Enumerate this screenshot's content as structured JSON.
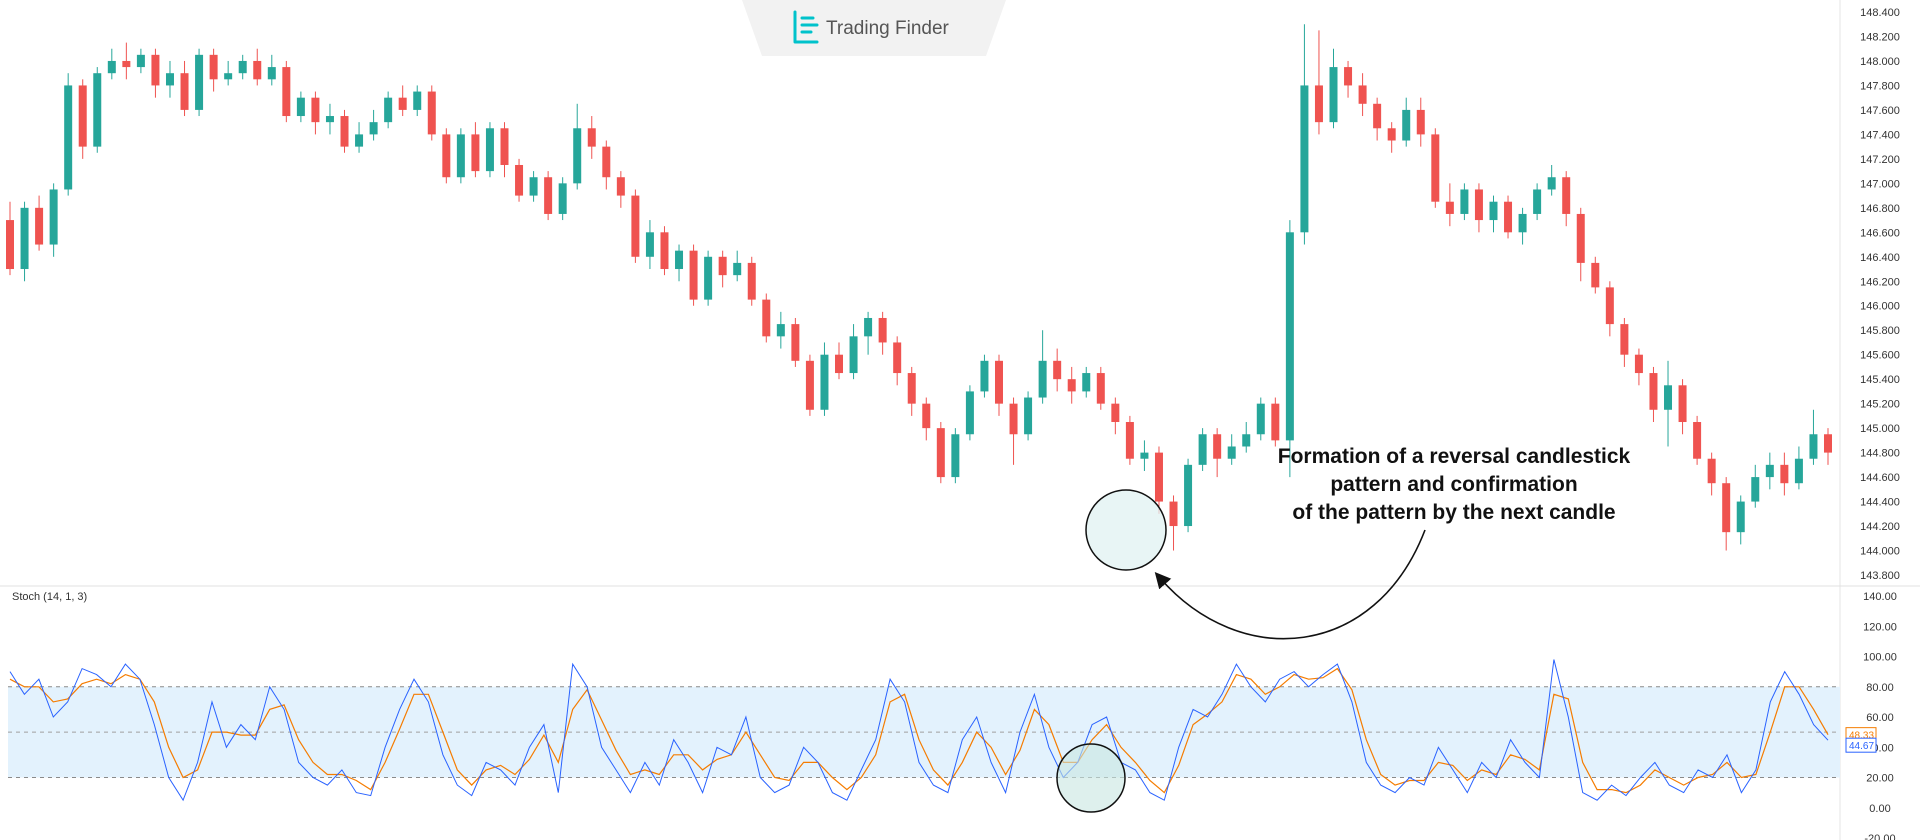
{
  "brand": {
    "name": "Trading Finder",
    "icon": "trading-finder-logo-icon"
  },
  "annotation": {
    "lines": [
      "Formation of a reversal candlestick",
      "pattern and confirmation",
      "of the pattern by the next candle"
    ]
  },
  "colors": {
    "up": "#26a69a",
    "down": "#ef5350",
    "k_line": "#2962ff",
    "d_line": "#f57c00",
    "band_fill": "#e3f2fd",
    "highlight": "#e0f2f1"
  },
  "chart_data": [
    {
      "type": "candlestick",
      "title": "",
      "ylabel": "",
      "y_ticks": [
        "148.400",
        "148.200",
        "148.000",
        "147.800",
        "147.600",
        "147.400",
        "147.200",
        "147.000",
        "146.800",
        "146.600",
        "146.400",
        "146.200",
        "146.000",
        "145.800",
        "145.600",
        "145.400",
        "145.200",
        "145.000",
        "144.800",
        "144.600",
        "144.400",
        "144.200",
        "144.000",
        "143.800"
      ],
      "ylim": [
        143.8,
        148.4
      ],
      "grid": false,
      "candles": [
        [
          146.7,
          146.3,
          146.85,
          146.25
        ],
        [
          146.3,
          146.8,
          146.85,
          146.2
        ],
        [
          146.8,
          146.5,
          146.9,
          146.45
        ],
        [
          146.5,
          146.95,
          147.0,
          146.4
        ],
        [
          146.95,
          147.8,
          147.9,
          146.9
        ],
        [
          147.8,
          147.3,
          147.85,
          147.2
        ],
        [
          147.3,
          147.9,
          147.95,
          147.25
        ],
        [
          147.9,
          148.0,
          148.1,
          147.85
        ],
        [
          148.0,
          147.95,
          148.15,
          147.85
        ],
        [
          147.95,
          148.05,
          148.1,
          147.9
        ],
        [
          148.05,
          147.8,
          148.1,
          147.7
        ],
        [
          147.8,
          147.9,
          148.0,
          147.7
        ],
        [
          147.9,
          147.6,
          148.0,
          147.55
        ],
        [
          147.6,
          148.05,
          148.1,
          147.55
        ],
        [
          148.05,
          147.85,
          148.1,
          147.75
        ],
        [
          147.85,
          147.9,
          148.0,
          147.8
        ],
        [
          147.9,
          148.0,
          148.05,
          147.85
        ],
        [
          148.0,
          147.85,
          148.1,
          147.8
        ],
        [
          147.85,
          147.95,
          148.05,
          147.8
        ],
        [
          147.95,
          147.55,
          148.0,
          147.5
        ],
        [
          147.55,
          147.7,
          147.75,
          147.5
        ],
        [
          147.7,
          147.5,
          147.75,
          147.4
        ],
        [
          147.5,
          147.55,
          147.65,
          147.4
        ],
        [
          147.55,
          147.3,
          147.6,
          147.25
        ],
        [
          147.3,
          147.4,
          147.5,
          147.25
        ],
        [
          147.4,
          147.5,
          147.6,
          147.35
        ],
        [
          147.5,
          147.7,
          147.75,
          147.45
        ],
        [
          147.7,
          147.6,
          147.8,
          147.55
        ],
        [
          147.6,
          147.75,
          147.8,
          147.55
        ],
        [
          147.75,
          147.4,
          147.8,
          147.35
        ],
        [
          147.4,
          147.05,
          147.45,
          147.0
        ],
        [
          147.05,
          147.4,
          147.45,
          147.0
        ],
        [
          147.4,
          147.1,
          147.5,
          147.05
        ],
        [
          147.1,
          147.45,
          147.5,
          147.05
        ],
        [
          147.45,
          147.15,
          147.5,
          147.05
        ],
        [
          147.15,
          146.9,
          147.2,
          146.85
        ],
        [
          146.9,
          147.05,
          147.1,
          146.85
        ],
        [
          147.05,
          146.75,
          147.1,
          146.7
        ],
        [
          146.75,
          147.0,
          147.05,
          146.7
        ],
        [
          147.0,
          147.45,
          147.65,
          146.95
        ],
        [
          147.45,
          147.3,
          147.55,
          147.2
        ],
        [
          147.3,
          147.05,
          147.35,
          146.95
        ],
        [
          147.05,
          146.9,
          147.1,
          146.8
        ],
        [
          146.9,
          146.4,
          146.95,
          146.35
        ],
        [
          146.4,
          146.6,
          146.7,
          146.3
        ],
        [
          146.6,
          146.3,
          146.65,
          146.25
        ],
        [
          146.3,
          146.45,
          146.5,
          146.2
        ],
        [
          146.45,
          146.05,
          146.5,
          146.0
        ],
        [
          146.05,
          146.4,
          146.45,
          146.0
        ],
        [
          146.4,
          146.25,
          146.45,
          146.15
        ],
        [
          146.25,
          146.35,
          146.45,
          146.2
        ],
        [
          146.35,
          146.05,
          146.4,
          146.0
        ],
        [
          146.05,
          145.75,
          146.1,
          145.7
        ],
        [
          145.75,
          145.85,
          145.95,
          145.65
        ],
        [
          145.85,
          145.55,
          145.9,
          145.5
        ],
        [
          145.55,
          145.15,
          145.6,
          145.1
        ],
        [
          145.15,
          145.6,
          145.7,
          145.1
        ],
        [
          145.6,
          145.45,
          145.7,
          145.4
        ],
        [
          145.45,
          145.75,
          145.85,
          145.4
        ],
        [
          145.75,
          145.9,
          145.95,
          145.6
        ],
        [
          145.9,
          145.7,
          145.95,
          145.6
        ],
        [
          145.7,
          145.45,
          145.75,
          145.35
        ],
        [
          145.45,
          145.2,
          145.5,
          145.1
        ],
        [
          145.2,
          145.0,
          145.25,
          144.9
        ],
        [
          145.0,
          144.6,
          145.05,
          144.55
        ],
        [
          144.6,
          144.95,
          145.0,
          144.55
        ],
        [
          144.95,
          145.3,
          145.35,
          144.9
        ],
        [
          145.3,
          145.55,
          145.6,
          145.25
        ],
        [
          145.55,
          145.2,
          145.6,
          145.1
        ],
        [
          145.2,
          144.95,
          145.25,
          144.7
        ],
        [
          144.95,
          145.25,
          145.3,
          144.9
        ],
        [
          145.25,
          145.55,
          145.8,
          145.2
        ],
        [
          145.55,
          145.4,
          145.65,
          145.3
        ],
        [
          145.4,
          145.3,
          145.5,
          145.2
        ],
        [
          145.3,
          145.45,
          145.5,
          145.25
        ],
        [
          145.45,
          145.2,
          145.5,
          145.15
        ],
        [
          145.2,
          145.05,
          145.25,
          144.95
        ],
        [
          145.05,
          144.75,
          145.1,
          144.7
        ],
        [
          144.75,
          144.8,
          144.9,
          144.65
        ],
        [
          144.8,
          144.4,
          144.85,
          144.3
        ],
        [
          144.4,
          144.2,
          144.45,
          144.0
        ],
        [
          144.2,
          144.7,
          144.75,
          144.15
        ],
        [
          144.7,
          144.95,
          145.0,
          144.65
        ],
        [
          144.95,
          144.75,
          145.0,
          144.6
        ],
        [
          144.75,
          144.85,
          144.95,
          144.7
        ],
        [
          144.85,
          144.95,
          145.05,
          144.8
        ],
        [
          144.95,
          145.2,
          145.25,
          144.9
        ],
        [
          145.2,
          144.9,
          145.25,
          144.85
        ],
        [
          144.9,
          146.6,
          146.7,
          144.6
        ],
        [
          146.6,
          147.8,
          148.3,
          146.5
        ],
        [
          147.8,
          147.5,
          148.25,
          147.4
        ],
        [
          147.5,
          147.95,
          148.1,
          147.45
        ],
        [
          147.95,
          147.8,
          148.0,
          147.7
        ],
        [
          147.8,
          147.65,
          147.9,
          147.55
        ],
        [
          147.65,
          147.45,
          147.7,
          147.35
        ],
        [
          147.45,
          147.35,
          147.5,
          147.25
        ],
        [
          147.35,
          147.6,
          147.7,
          147.3
        ],
        [
          147.6,
          147.4,
          147.7,
          147.3
        ],
        [
          147.4,
          146.85,
          147.45,
          146.8
        ],
        [
          146.85,
          146.75,
          147.0,
          146.65
        ],
        [
          146.75,
          146.95,
          147.0,
          146.7
        ],
        [
          146.95,
          146.7,
          147.0,
          146.6
        ],
        [
          146.7,
          146.85,
          146.9,
          146.6
        ],
        [
          146.85,
          146.6,
          146.9,
          146.55
        ],
        [
          146.6,
          146.75,
          146.8,
          146.5
        ],
        [
          146.75,
          146.95,
          147.0,
          146.7
        ],
        [
          146.95,
          147.05,
          147.15,
          146.9
        ],
        [
          147.05,
          146.75,
          147.1,
          146.65
        ],
        [
          146.75,
          146.35,
          146.8,
          146.2
        ],
        [
          146.35,
          146.15,
          146.4,
          146.1
        ],
        [
          146.15,
          145.85,
          146.2,
          145.75
        ],
        [
          145.85,
          145.6,
          145.9,
          145.5
        ],
        [
          145.6,
          145.45,
          145.65,
          145.35
        ],
        [
          145.45,
          145.15,
          145.5,
          145.05
        ],
        [
          145.15,
          145.35,
          145.55,
          144.85
        ],
        [
          145.35,
          145.05,
          145.4,
          144.95
        ],
        [
          145.05,
          144.75,
          145.1,
          144.7
        ],
        [
          144.75,
          144.55,
          144.8,
          144.45
        ],
        [
          144.55,
          144.15,
          144.6,
          144.0
        ],
        [
          144.15,
          144.4,
          144.45,
          144.05
        ],
        [
          144.4,
          144.6,
          144.7,
          144.35
        ],
        [
          144.6,
          144.7,
          144.8,
          144.5
        ],
        [
          144.7,
          144.55,
          144.8,
          144.45
        ],
        [
          144.55,
          144.75,
          144.85,
          144.5
        ],
        [
          144.75,
          144.95,
          145.15,
          144.7
        ],
        [
          144.95,
          144.8,
          145.0,
          144.7
        ]
      ]
    },
    {
      "type": "line",
      "title": "Stoch (14, 1, 3)",
      "y_ticks": [
        "140.00",
        "120.00",
        "100.00",
        "80.00",
        "60.00",
        "40.00",
        "20.00",
        "0.00",
        "-20.00"
      ],
      "ylim": [
        -20,
        140
      ],
      "levels": [
        80,
        50,
        20
      ],
      "series": [
        {
          "label": "%K",
          "last": "44.67",
          "values": [
            90,
            75,
            85,
            60,
            70,
            92,
            88,
            80,
            95,
            85,
            55,
            20,
            5,
            30,
            70,
            40,
            55,
            45,
            80,
            65,
            30,
            20,
            15,
            25,
            10,
            8,
            40,
            65,
            85,
            70,
            35,
            15,
            8,
            30,
            25,
            15,
            40,
            55,
            10,
            95,
            80,
            40,
            25,
            10,
            30,
            15,
            45,
            30,
            10,
            40,
            35,
            60,
            20,
            10,
            15,
            40,
            30,
            10,
            5,
            25,
            45,
            85,
            70,
            30,
            15,
            10,
            45,
            60,
            30,
            10,
            50,
            75,
            40,
            20,
            30,
            55,
            60,
            30,
            25,
            10,
            5,
            40,
            65,
            60,
            75,
            95,
            80,
            70,
            85,
            90,
            80,
            88,
            95,
            70,
            30,
            15,
            10,
            20,
            15,
            40,
            25,
            10,
            30,
            20,
            45,
            30,
            20,
            98,
            60,
            10,
            5,
            15,
            8,
            20,
            30,
            15,
            10,
            25,
            20,
            35,
            10,
            25,
            70,
            90,
            75,
            55,
            44.67
          ]
        },
        {
          "label": "%D",
          "last": "48.33",
          "values": [
            85,
            80,
            80,
            70,
            72,
            82,
            85,
            82,
            88,
            85,
            70,
            40,
            20,
            25,
            50,
            50,
            48,
            48,
            65,
            68,
            45,
            30,
            22,
            22,
            18,
            12,
            30,
            52,
            75,
            75,
            50,
            25,
            15,
            25,
            28,
            22,
            32,
            48,
            30,
            65,
            78,
            58,
            38,
            22,
            25,
            22,
            35,
            35,
            25,
            32,
            35,
            50,
            35,
            20,
            18,
            30,
            30,
            20,
            12,
            20,
            35,
            70,
            75,
            45,
            25,
            15,
            30,
            50,
            40,
            22,
            38,
            65,
            55,
            30,
            30,
            45,
            55,
            40,
            30,
            18,
            10,
            28,
            55,
            62,
            70,
            88,
            85,
            75,
            80,
            88,
            85,
            86,
            92,
            78,
            45,
            22,
            15,
            18,
            18,
            30,
            28,
            18,
            25,
            22,
            35,
            32,
            25,
            75,
            72,
            30,
            12,
            12,
            10,
            15,
            25,
            20,
            15,
            20,
            22,
            30,
            20,
            22,
            50,
            80,
            80,
            65,
            48.33
          ]
        }
      ]
    }
  ]
}
